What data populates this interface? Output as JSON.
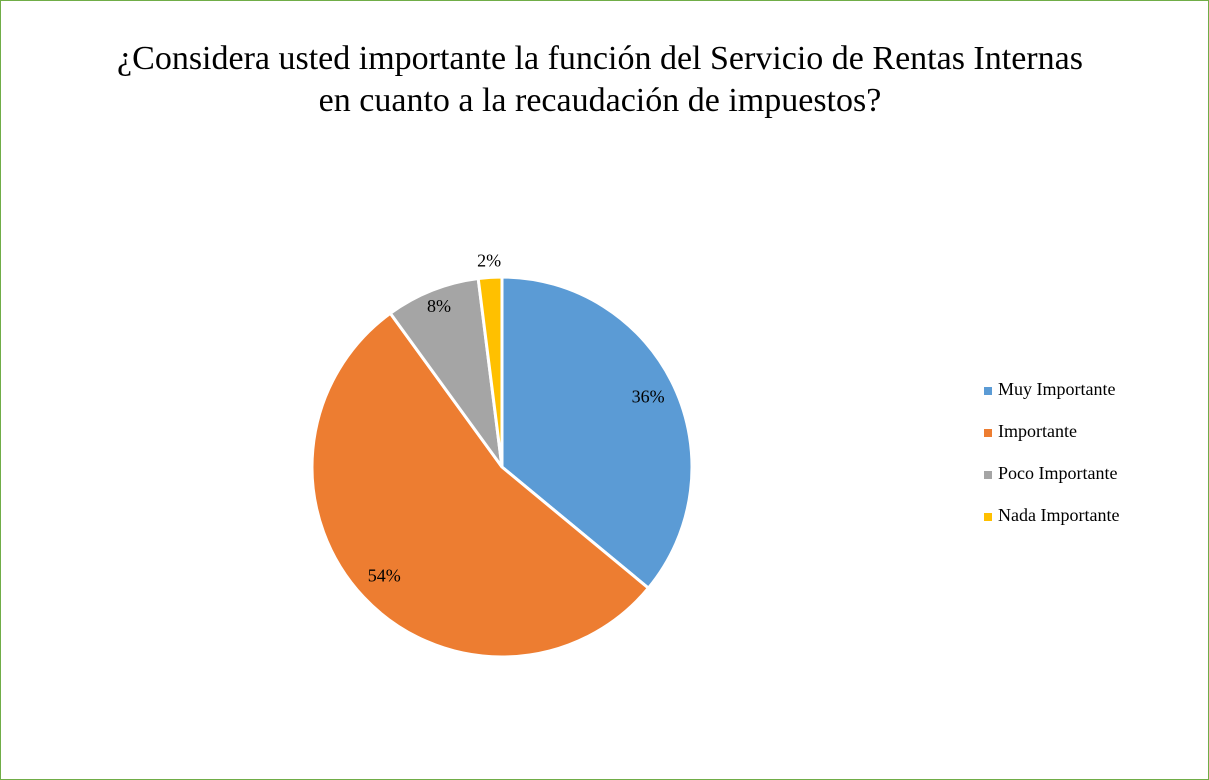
{
  "chart_data": {
    "type": "pie",
    "title": "¿Considera usted importante la función del Servicio de Rentas Internas en cuanto a la recaudación de impuestos?",
    "categories": [
      "Muy Importante",
      "Importante",
      "Poco Importante",
      "Nada Importante"
    ],
    "values": [
      36,
      54,
      8,
      2
    ],
    "value_labels": [
      "36%",
      "54%",
      "8%",
      "2%"
    ],
    "colors": [
      "#5b9bd5",
      "#ed7d31",
      "#a5a5a5",
      "#ffc000"
    ],
    "legend": "right"
  }
}
